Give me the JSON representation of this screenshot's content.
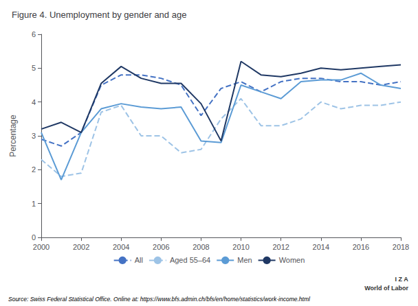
{
  "chart_data": {
    "type": "line",
    "title": "Figure 4. Unemployment by gender and age",
    "ylabel": "Percentage",
    "x": [
      2000,
      2001,
      2002,
      2003,
      2004,
      2005,
      2006,
      2007,
      2008,
      2009,
      2010,
      2011,
      2012,
      2013,
      2014,
      2015,
      2016,
      2017,
      2018
    ],
    "series": [
      {
        "name": "All",
        "color": "#4472c4",
        "line_style": "dashed",
        "values": [
          2.9,
          2.7,
          3.1,
          4.5,
          4.8,
          4.8,
          4.7,
          4.5,
          3.6,
          4.4,
          4.6,
          4.3,
          4.6,
          4.7,
          4.7,
          4.6,
          4.6,
          4.5,
          4.6
        ]
      },
      {
        "name": "Aged 55–64",
        "color": "#9dc3e6",
        "line_style": "dashed",
        "values": [
          2.3,
          1.8,
          1.9,
          3.7,
          3.9,
          3.0,
          3.0,
          2.5,
          2.6,
          3.5,
          4.1,
          3.3,
          3.3,
          3.5,
          4.0,
          3.8,
          3.9,
          3.9,
          4.0
        ]
      },
      {
        "name": "Men",
        "color": "#5b9bd5",
        "line_style": "solid",
        "values": [
          3.1,
          1.7,
          3.1,
          3.8,
          3.95,
          3.85,
          3.8,
          3.85,
          2.85,
          2.8,
          4.5,
          4.3,
          4.1,
          4.6,
          4.65,
          4.65,
          4.85,
          4.5,
          4.4
        ]
      },
      {
        "name": "Women",
        "color": "#1f3864",
        "line_style": "solid",
        "values": [
          3.2,
          3.4,
          3.1,
          4.55,
          5.05,
          4.7,
          4.55,
          4.55,
          3.95,
          2.85,
          5.2,
          4.8,
          4.75,
          4.85,
          5.0,
          4.95,
          5.0,
          5.05,
          5.1
        ]
      }
    ],
    "xlim": [
      2000,
      2018
    ],
    "xticks": [
      2000,
      2002,
      2004,
      2006,
      2008,
      2010,
      2012,
      2014,
      2016,
      2018
    ],
    "ylim": [
      0,
      6
    ],
    "yticks": [
      0,
      1,
      2,
      3,
      4,
      5,
      6
    ],
    "grid": false,
    "legend": "bottom",
    "annotations": [
      "Source: Swiss Federal Statistical Office. Online at: https://www.bfs.admin.ch/bfs/en/home/statistics/work-income.html",
      "I Z A",
      "World of Labor"
    ]
  }
}
